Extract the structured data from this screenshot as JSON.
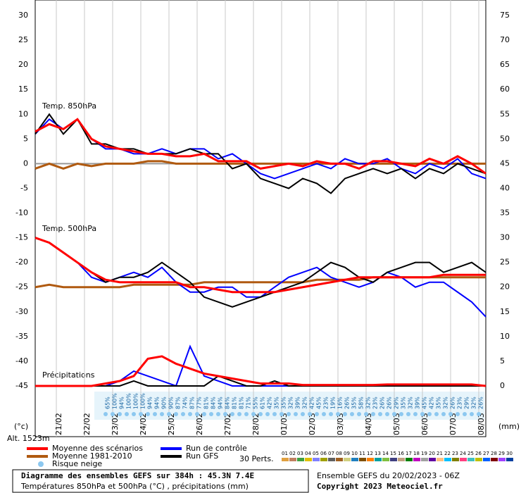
{
  "chart_data": {
    "type": "line",
    "annotations": [
      "Temp. 850hPa",
      "Temp. 500hPa",
      "Précipitations"
    ],
    "y_label": "(°c)",
    "y2_label": "(mm)",
    "altitude": "Alt. 1523m",
    "x": [
      0,
      12,
      24,
      36,
      48,
      60,
      72,
      84,
      96,
      108,
      120,
      132,
      144,
      156,
      168,
      180,
      192,
      204,
      216,
      228,
      240,
      252,
      264,
      276,
      288,
      300,
      312,
      324,
      336,
      348,
      360,
      372,
      384
    ],
    "xlim": [
      0,
      384
    ],
    "xticks": [
      {
        "value": 18,
        "label": "21/02"
      },
      {
        "value": 42,
        "label": "22/02"
      },
      {
        "value": 66,
        "label": "23/02"
      },
      {
        "value": 90,
        "label": "24/02"
      },
      {
        "value": 114,
        "label": "25/02"
      },
      {
        "value": 138,
        "label": "26/02"
      },
      {
        "value": 162,
        "label": "27/02"
      },
      {
        "value": 186,
        "label": "28/02"
      },
      {
        "value": 210,
        "label": "01/03"
      },
      {
        "value": 234,
        "label": "02/03"
      },
      {
        "value": 258,
        "label": "03/03"
      },
      {
        "value": 282,
        "label": "04/03"
      },
      {
        "value": 306,
        "label": "05/03"
      },
      {
        "value": 330,
        "label": "06/03"
      },
      {
        "value": 354,
        "label": "07/03"
      },
      {
        "value": 378,
        "label": "08/03"
      }
    ],
    "ylim": [
      -45,
      30
    ],
    "yticks": [
      -45,
      -40,
      -35,
      -30,
      -25,
      -20,
      -15,
      -10,
      -5,
      0,
      5,
      10,
      15,
      20,
      25,
      30
    ],
    "y2lim": [
      0,
      75
    ],
    "y2ticks": [
      0,
      5,
      10,
      15,
      20,
      25,
      30,
      35,
      40,
      45,
      50,
      55,
      60,
      65,
      70,
      75
    ],
    "grid": true,
    "series": [
      {
        "name": "Moyenne des scénarios",
        "color": "#ff0000",
        "t850": [
          6.5,
          8,
          7,
          9,
          5,
          3.5,
          3,
          2.5,
          2,
          2,
          1.5,
          1.5,
          2,
          0.5,
          0.5,
          0.5,
          -1,
          -0.5,
          0,
          -0.5,
          0.5,
          0,
          0,
          -1,
          0.5,
          0.5,
          0,
          -0.5,
          1,
          0,
          1.5,
          0,
          -2
        ],
        "t500": [
          -15,
          -16,
          -18,
          -20,
          -22,
          -23.5,
          -24,
          -24,
          -24,
          -24,
          -24,
          -25,
          -25,
          -25.5,
          -26,
          -26,
          -26,
          -26,
          -25.5,
          -25,
          -24.5,
          -24,
          -23.5,
          -23,
          -23,
          -23,
          -23,
          -23,
          -23,
          -22.5,
          -22.5,
          -22.5,
          -22.5
        ],
        "precip": [
          0,
          0,
          0,
          0,
          0,
          0.5,
          1,
          2,
          5.5,
          6,
          4.5,
          3.5,
          2.5,
          2,
          1.5,
          1,
          0.5,
          0.5,
          0.5,
          0.2,
          0.2,
          0.2,
          0.2,
          0.2,
          0.2,
          0.3,
          0.3,
          0.3,
          0.3,
          0.3,
          0.3,
          0.3,
          0
        ]
      },
      {
        "name": "Moyenne 1981-2010",
        "color": "#b05a10",
        "t850": [
          -1,
          0,
          -1,
          0,
          -0.5,
          0,
          0,
          0,
          0.5,
          0.5,
          0,
          0,
          0,
          0,
          0,
          0,
          0,
          0,
          0,
          0,
          0,
          0,
          0,
          0,
          0,
          0,
          0,
          0,
          0,
          0,
          0,
          0,
          0
        ],
        "t500": [
          -25,
          -24.5,
          -25,
          -25,
          -25,
          -25,
          -25,
          -24.5,
          -24.5,
          -24.5,
          -24.5,
          -24.5,
          -24,
          -24,
          -24,
          -24,
          -24,
          -24,
          -24,
          -24,
          -23.5,
          -23.5,
          -23.5,
          -23.5,
          -23,
          -23,
          -23,
          -23,
          -23,
          -23,
          -23,
          -23,
          -23
        ]
      },
      {
        "name": "Run de contrôle",
        "color": "#0000ff",
        "t850": [
          6,
          9,
          7,
          9,
          5,
          3,
          3,
          2,
          2,
          3,
          2,
          3,
          3,
          1,
          2,
          0,
          -2,
          -3,
          -2,
          -1,
          0,
          -1,
          1,
          0,
          0,
          1,
          -1,
          -2,
          0,
          -1,
          1,
          -2,
          -3
        ],
        "t500": [
          -15,
          -16,
          -18,
          -20,
          -23,
          -24,
          -23,
          -22,
          -23,
          -21,
          -24,
          -26,
          -26,
          -25,
          -25,
          -27,
          -27,
          -25,
          -23,
          -22,
          -21,
          -23,
          -24,
          -25,
          -24,
          -22,
          -23,
          -25,
          -24,
          -24,
          -26,
          -28,
          -31
        ],
        "precip": [
          0,
          0,
          0,
          0,
          0,
          0,
          1,
          3,
          2,
          1,
          0,
          8,
          2,
          1,
          0,
          0,
          0,
          0,
          0,
          0,
          0,
          0,
          0,
          0,
          0,
          0,
          0,
          0,
          0,
          0,
          0,
          0,
          0
        ]
      },
      {
        "name": "Run GFS",
        "color": "#000000",
        "t850": [
          6,
          10,
          6,
          9,
          4,
          4,
          3,
          3,
          2,
          2,
          2,
          3,
          2,
          2,
          -1,
          0,
          -3,
          -4,
          -5,
          -3,
          -4,
          -6,
          -3,
          -2,
          -1,
          -2,
          -1,
          -3,
          -1,
          -2,
          0,
          -1,
          -2
        ],
        "t500": [
          -15,
          -16,
          -18,
          -20,
          -22,
          -24,
          -23,
          -23,
          -22,
          -20,
          -22,
          -24,
          -27,
          -28,
          -29,
          -28,
          -27,
          -26,
          -25,
          -24,
          -22,
          -20,
          -21,
          -23,
          -24,
          -22,
          -21,
          -20,
          -20,
          -22,
          -21,
          -20,
          -22
        ],
        "precip": [
          0,
          0,
          0,
          0,
          0,
          0,
          0,
          1,
          0,
          0,
          0,
          0,
          0,
          2,
          1,
          0,
          0,
          1,
          0,
          0,
          0,
          0,
          0,
          0,
          0,
          0,
          0,
          0,
          0,
          0,
          0,
          0,
          0
        ]
      }
    ],
    "snow_risk": {
      "name": "Risque neige",
      "x": [
        60,
        66,
        72,
        78,
        84,
        90,
        96,
        102,
        108,
        114,
        120,
        126,
        132,
        138,
        144,
        150,
        156,
        162,
        168,
        174,
        180,
        186,
        192,
        198,
        204,
        210,
        216,
        222,
        228,
        234,
        240,
        246,
        252,
        258,
        264,
        270,
        276,
        282,
        288,
        294,
        300,
        306,
        312,
        318,
        324,
        330,
        336,
        342,
        348,
        354,
        360,
        366,
        372,
        378
      ],
      "values": [
        65,
        100,
        94,
        100,
        100,
        100,
        94,
        94,
        90,
        90,
        87,
        74,
        87,
        77,
        81,
        84,
        94,
        84,
        81,
        81,
        71,
        55,
        61,
        42,
        35,
        35,
        32,
        39,
        32,
        42,
        45,
        23,
        19,
        16,
        26,
        35,
        58,
        32,
        23,
        26,
        26,
        29,
        35,
        32,
        39,
        45,
        42,
        35,
        32,
        26,
        23,
        29,
        32,
        26
      ],
      "value_labels": [
        "65%",
        "100%",
        "94%",
        "100%",
        "100%",
        "100%",
        "94%",
        "94%",
        "90%",
        "90%",
        "87%",
        "74%",
        "87%",
        "77%",
        "81%",
        "84%",
        "94%",
        "84%",
        "81%",
        "81%",
        "71%",
        "55%",
        "61%",
        "42%",
        "35%",
        "35%",
        "32%",
        "39%",
        "32%",
        "42%",
        "45%",
        "23%",
        "19%",
        "16%",
        "26%",
        "35%",
        "58%",
        "32%",
        "23%",
        "26%",
        "26%",
        "29%",
        "35%",
        "32%",
        "39%",
        "45%",
        "42%",
        "35%",
        "32%",
        "26%",
        "23%",
        "29%",
        "32%",
        "26%"
      ]
    },
    "perturbations": {
      "label": "30 Perts.",
      "members": [
        {
          "name": "01",
          "color": "#e0a040"
        },
        {
          "name": "02",
          "color": "#c08060"
        },
        {
          "name": "03",
          "color": "#40a040"
        },
        {
          "name": "04",
          "color": "#e0c000"
        },
        {
          "name": "05",
          "color": "#8080ff"
        },
        {
          "name": "06",
          "color": "#a0a000"
        },
        {
          "name": "07",
          "color": "#606060"
        },
        {
          "name": "08",
          "color": "#a06020"
        },
        {
          "name": "09",
          "color": "#d0d080"
        },
        {
          "name": "10",
          "color": "#2080c0"
        },
        {
          "name": "11",
          "color": "#805000"
        },
        {
          "name": "12",
          "color": "#ff8000"
        },
        {
          "name": "13",
          "color": "#00a0a0"
        },
        {
          "name": "14",
          "color": "#80c040"
        },
        {
          "name": "15",
          "color": "#404080"
        },
        {
          "name": "16",
          "color": "#c0a080"
        },
        {
          "name": "17",
          "color": "#008000"
        },
        {
          "name": "18",
          "color": "#c000c0"
        },
        {
          "name": "19",
          "color": "#a0a0a0"
        },
        {
          "name": "20",
          "color": "#6000a0"
        },
        {
          "name": "21",
          "color": "#ffc080"
        },
        {
          "name": "22",
          "color": "#00c0ff"
        },
        {
          "name": "23",
          "color": "#808000"
        },
        {
          "name": "24",
          "color": "#ff4080"
        },
        {
          "name": "25",
          "color": "#40c0c0"
        },
        {
          "name": "26",
          "color": "#c0c000"
        },
        {
          "name": "27",
          "color": "#0060ff"
        },
        {
          "name": "28",
          "color": "#800000"
        },
        {
          "name": "29",
          "color": "#a040ff"
        },
        {
          "name": "30",
          "color": "#0040a0"
        }
      ]
    }
  },
  "footer": {
    "title": "Diagramme des ensembles GEFS sur 384h : 45.3N 7.4E",
    "subtitle": "Températures 850hPa et 500hPa (°C) , précipitations (mm)",
    "run": "Ensemble GEFS du 20/02/2023 - 06Z",
    "copyright": "Copyright 2023 Meteociel.fr"
  }
}
